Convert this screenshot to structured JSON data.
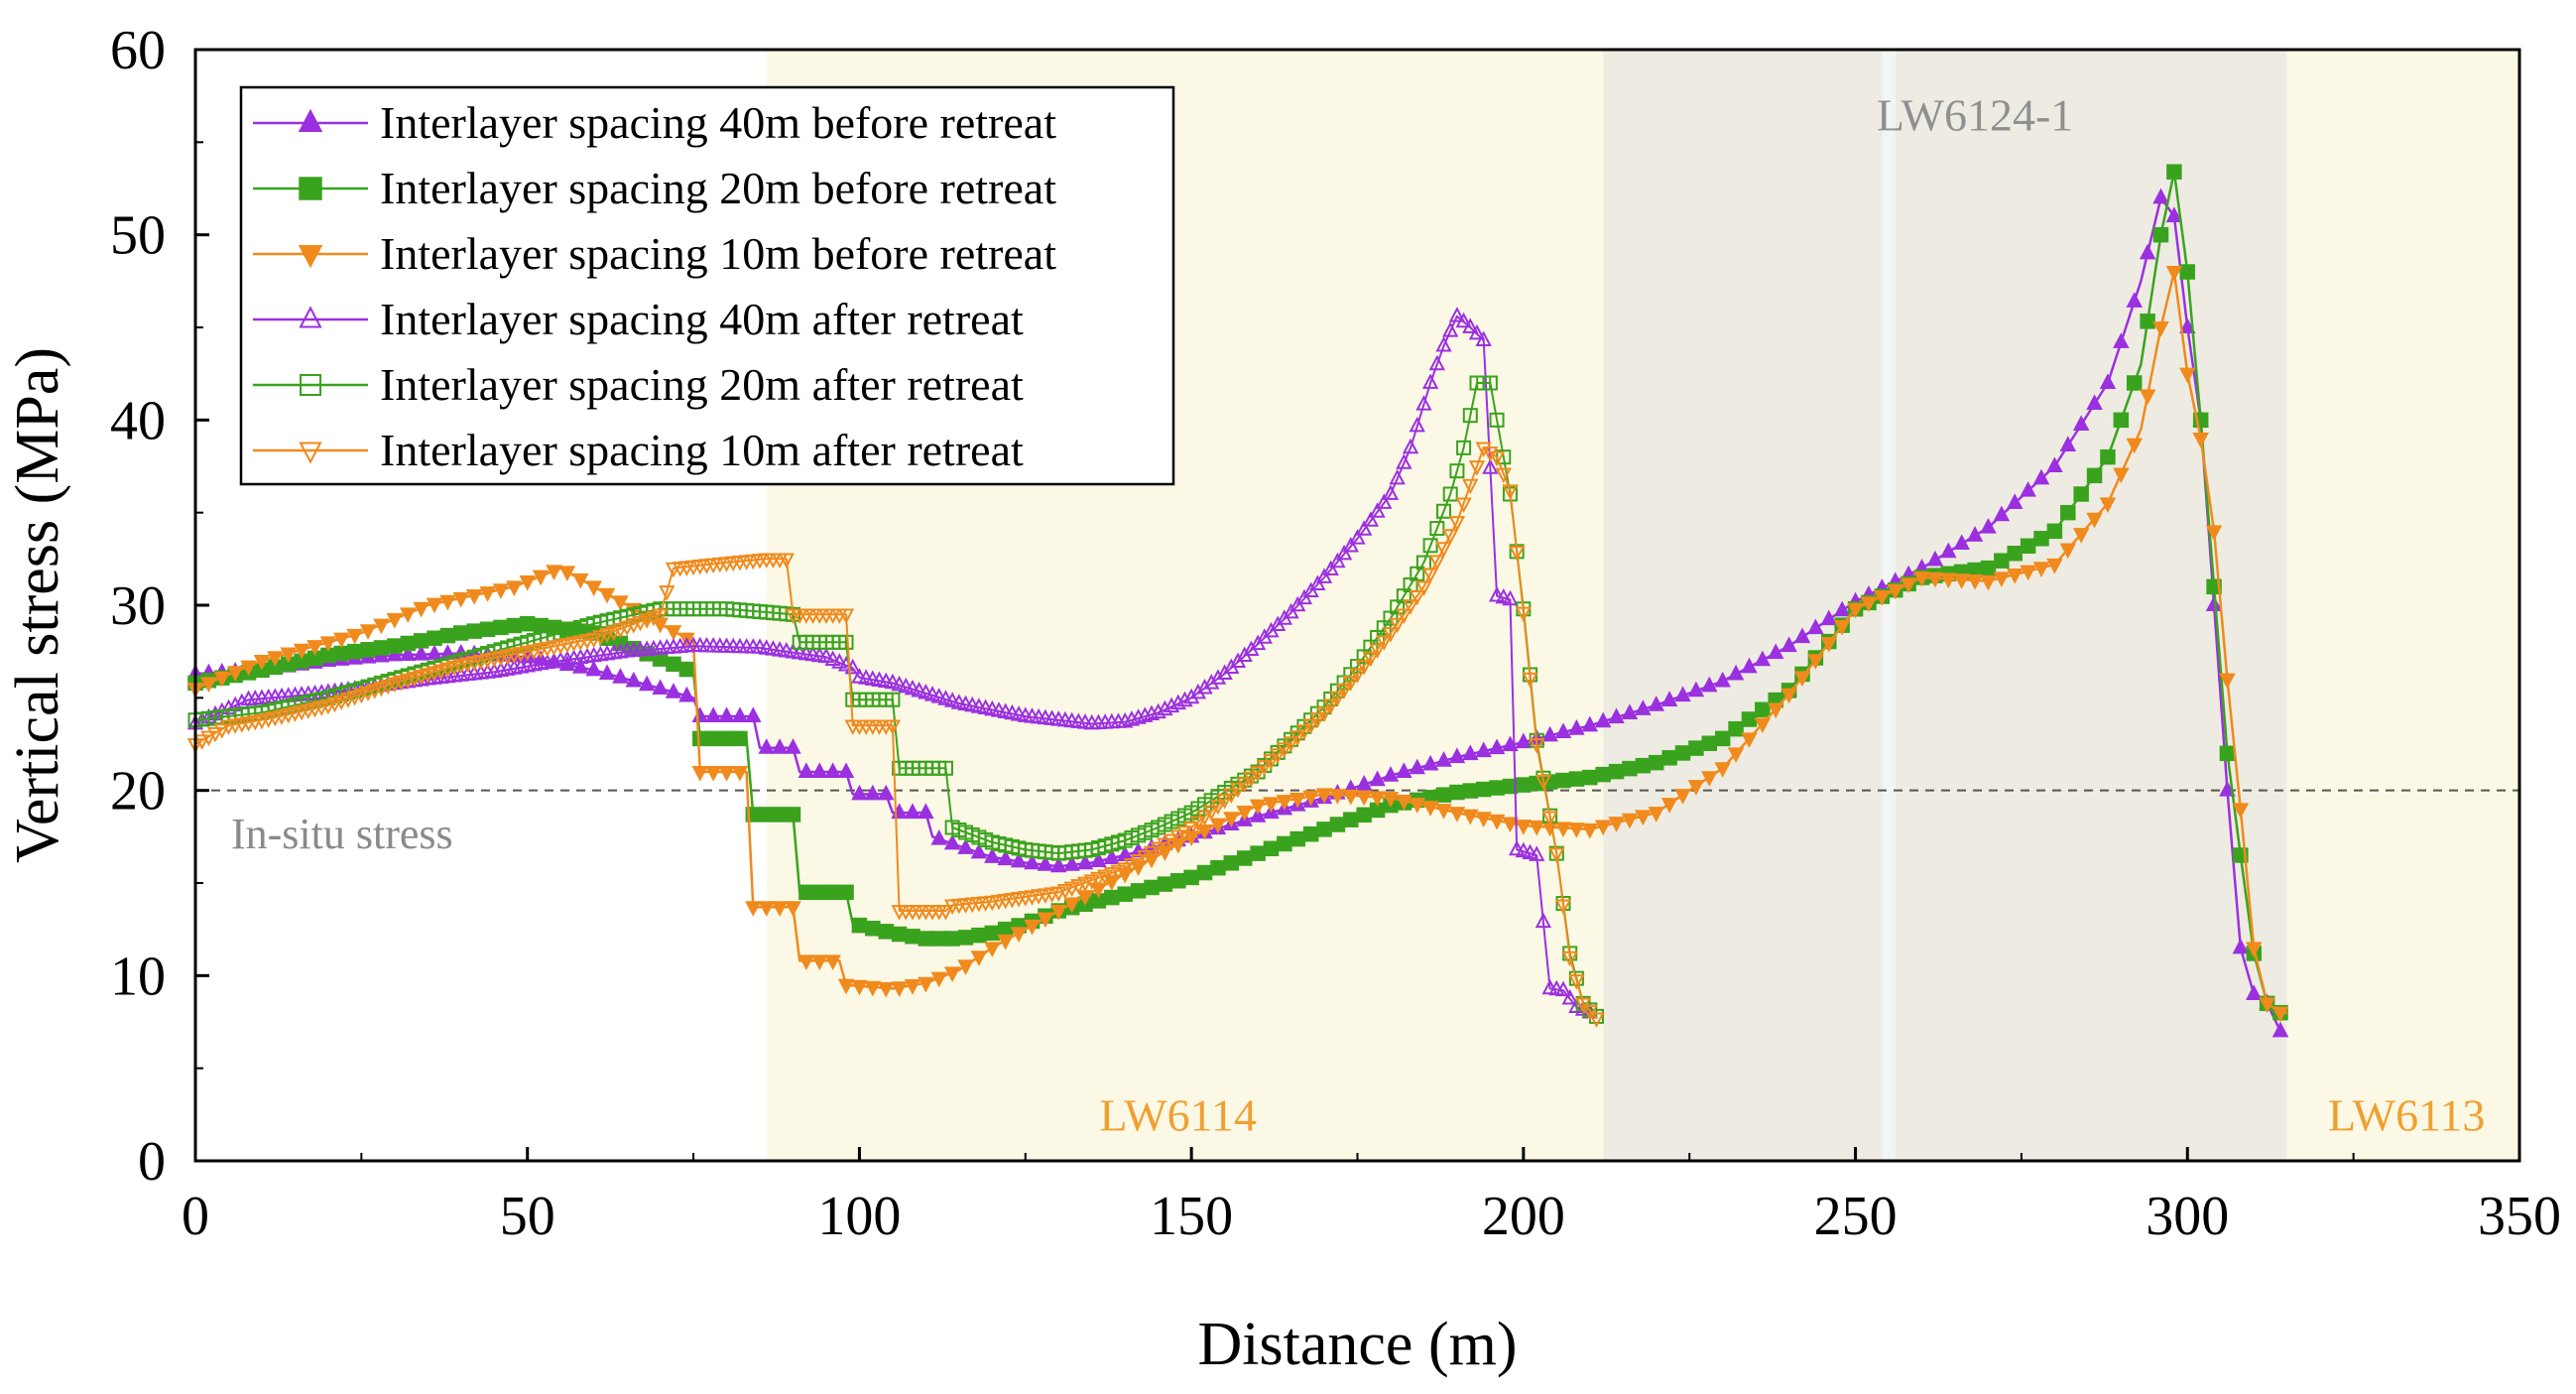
{
  "chart_data": {
    "type": "line",
    "title": "",
    "xlabel": "Distance (m)",
    "ylabel": "Vertical stress (MPa)",
    "xlim": [
      0,
      350
    ],
    "ylim": [
      0,
      60
    ],
    "xticks": [
      0,
      50,
      100,
      150,
      200,
      250,
      300,
      350
    ],
    "yticks": [
      0,
      10,
      20,
      30,
      40,
      50,
      60
    ],
    "grid": false,
    "legend_position": "top-left",
    "reference_line": {
      "y": 20,
      "label": "In-situ stress",
      "color": "#555555",
      "style": "dashed"
    },
    "regions": [
      {
        "x0": 86,
        "x1": 212,
        "color": "#fbf8e6",
        "label": ""
      },
      {
        "x0": 212,
        "x1": 254,
        "color": "#eeece2",
        "label": ""
      },
      {
        "x0": 254,
        "x1": 256,
        "color": "#f3f4f4",
        "label": ""
      },
      {
        "x0": 256,
        "x1": 315,
        "color": "#eeece2",
        "label": ""
      },
      {
        "x0": 315,
        "x1": 350,
        "color": "#fbf8e6",
        "label": ""
      }
    ],
    "annotations": [
      {
        "text": "LW6114",
        "x": 148,
        "y": 2.5,
        "color": "#f0a030"
      },
      {
        "text": "LW6124-1",
        "x": 268,
        "y": 56.5,
        "color": "#909090"
      },
      {
        "text": "LW6113",
        "x": 333,
        "y": 2.5,
        "color": "#f0a030"
      }
    ],
    "series": [
      {
        "name": "Interlayer spacing 40m before retreat",
        "color": "#9b30e0",
        "marker": "triangle-up",
        "filled": true,
        "step": 2,
        "points": [
          [
            0,
            26.3
          ],
          [
            10,
            26.5
          ],
          [
            20,
            27.0
          ],
          [
            30,
            27.3
          ],
          [
            40,
            27.4
          ],
          [
            50,
            27.2
          ],
          [
            60,
            26.5
          ],
          [
            75,
            25.0
          ],
          [
            76,
            24.0
          ],
          [
            84,
            24.0
          ],
          [
            85,
            22.3
          ],
          [
            90,
            22.3
          ],
          [
            91,
            21.0
          ],
          [
            98,
            21.0
          ],
          [
            99,
            19.8
          ],
          [
            104,
            19.8
          ],
          [
            105,
            18.8
          ],
          [
            110,
            18.8
          ],
          [
            111,
            17.5
          ],
          [
            115,
            17.0
          ],
          [
            120,
            16.4
          ],
          [
            125,
            16.1
          ],
          [
            130,
            15.9
          ],
          [
            135,
            16.1
          ],
          [
            140,
            16.5
          ],
          [
            150,
            17.5
          ],
          [
            160,
            18.6
          ],
          [
            170,
            19.6
          ],
          [
            180,
            20.8
          ],
          [
            190,
            21.8
          ],
          [
            200,
            22.6
          ],
          [
            210,
            23.5
          ],
          [
            220,
            24.6
          ],
          [
            230,
            25.9
          ],
          [
            240,
            27.8
          ],
          [
            250,
            30.2
          ],
          [
            260,
            32.0
          ],
          [
            270,
            34.2
          ],
          [
            280,
            37.5
          ],
          [
            288,
            42.0
          ],
          [
            293,
            47.5
          ],
          [
            296,
            52.0
          ],
          [
            298,
            51.0
          ],
          [
            300,
            45.0
          ],
          [
            302,
            40.0
          ],
          [
            304,
            30.0
          ],
          [
            306,
            20.0
          ],
          [
            308,
            11.5
          ],
          [
            310,
            9.0
          ],
          [
            312,
            8.5
          ],
          [
            314,
            7.0
          ]
        ]
      },
      {
        "name": "Interlayer spacing 20m before retreat",
        "color": "#3aa31e",
        "marker": "square",
        "filled": true,
        "step": 2,
        "points": [
          [
            0,
            25.8
          ],
          [
            10,
            26.5
          ],
          [
            20,
            27.3
          ],
          [
            30,
            27.8
          ],
          [
            40,
            28.5
          ],
          [
            50,
            29.0
          ],
          [
            60,
            28.5
          ],
          [
            75,
            26.4
          ],
          [
            76,
            22.8
          ],
          [
            83,
            22.8
          ],
          [
            84,
            18.7
          ],
          [
            90,
            18.7
          ],
          [
            91,
            14.5
          ],
          [
            98,
            14.5
          ],
          [
            99,
            12.8
          ],
          [
            105,
            12.3
          ],
          [
            110,
            12.0
          ],
          [
            115,
            12.0
          ],
          [
            120,
            12.3
          ],
          [
            125,
            12.8
          ],
          [
            130,
            13.5
          ],
          [
            140,
            14.4
          ],
          [
            150,
            15.3
          ],
          [
            160,
            16.6
          ],
          [
            170,
            17.9
          ],
          [
            180,
            19.2
          ],
          [
            190,
            19.9
          ],
          [
            200,
            20.3
          ],
          [
            210,
            20.7
          ],
          [
            220,
            21.5
          ],
          [
            230,
            22.8
          ],
          [
            240,
            25.4
          ],
          [
            250,
            29.8
          ],
          [
            260,
            31.5
          ],
          [
            270,
            32.0
          ],
          [
            280,
            34.0
          ],
          [
            288,
            38.0
          ],
          [
            293,
            43.0
          ],
          [
            296,
            50.0
          ],
          [
            298,
            53.4
          ],
          [
            300,
            48.0
          ],
          [
            302,
            40.0
          ],
          [
            304,
            31.0
          ],
          [
            306,
            22.0
          ],
          [
            308,
            16.5
          ],
          [
            310,
            11.2
          ],
          [
            312,
            8.5
          ],
          [
            314,
            8.0
          ],
          [
            315,
            8.0
          ]
        ]
      },
      {
        "name": "Interlayer spacing 10m before retreat",
        "color": "#f08a1c",
        "marker": "triangle-down",
        "filled": true,
        "step": 2,
        "points": [
          [
            0,
            25.5
          ],
          [
            10,
            27.0
          ],
          [
            25,
            28.5
          ],
          [
            35,
            30.0
          ],
          [
            48,
            31.0
          ],
          [
            55,
            32.0
          ],
          [
            60,
            31.0
          ],
          [
            65,
            30.0
          ],
          [
            75,
            28.0
          ],
          [
            76,
            21.0
          ],
          [
            83,
            21.0
          ],
          [
            84,
            13.7
          ],
          [
            90,
            13.7
          ],
          [
            91,
            10.8
          ],
          [
            97,
            10.8
          ],
          [
            98,
            9.5
          ],
          [
            105,
            9.3
          ],
          [
            110,
            9.6
          ],
          [
            115,
            10.3
          ],
          [
            120,
            11.5
          ],
          [
            130,
            13.5
          ],
          [
            140,
            15.5
          ],
          [
            150,
            17.5
          ],
          [
            160,
            19.2
          ],
          [
            170,
            19.8
          ],
          [
            180,
            19.6
          ],
          [
            190,
            18.8
          ],
          [
            200,
            18.1
          ],
          [
            210,
            17.9
          ],
          [
            220,
            18.8
          ],
          [
            230,
            21.2
          ],
          [
            240,
            25.2
          ],
          [
            250,
            29.8
          ],
          [
            260,
            31.5
          ],
          [
            270,
            31.3
          ],
          [
            280,
            32.2
          ],
          [
            288,
            35.5
          ],
          [
            293,
            39.5
          ],
          [
            296,
            45.0
          ],
          [
            298,
            48.0
          ],
          [
            300,
            42.5
          ],
          [
            302,
            39.0
          ],
          [
            304,
            34.0
          ],
          [
            306,
            26.0
          ],
          [
            308,
            19.0
          ],
          [
            310,
            11.5
          ],
          [
            312,
            8.5
          ],
          [
            314,
            8.0
          ],
          [
            315,
            8.0
          ]
        ]
      },
      {
        "name": "Interlayer spacing 40m after retreat",
        "color": "#9b30e0",
        "marker": "triangle-up",
        "filled": false,
        "step": 1,
        "points": [
          [
            0,
            23.6
          ],
          [
            8,
            24.9
          ],
          [
            18,
            25.2
          ],
          [
            25,
            25.5
          ],
          [
            35,
            26.0
          ],
          [
            45,
            26.4
          ],
          [
            55,
            27.0
          ],
          [
            65,
            27.5
          ],
          [
            75,
            27.8
          ],
          [
            85,
            27.7
          ],
          [
            95,
            27.2
          ],
          [
            99,
            26.6
          ],
          [
            100,
            26.1
          ],
          [
            105,
            25.8
          ],
          [
            115,
            24.7
          ],
          [
            125,
            24.0
          ],
          [
            135,
            23.6
          ],
          [
            140,
            23.7
          ],
          [
            145,
            24.2
          ],
          [
            150,
            25.0
          ],
          [
            155,
            26.3
          ],
          [
            160,
            27.9
          ],
          [
            165,
            29.6
          ],
          [
            170,
            31.5
          ],
          [
            175,
            33.6
          ],
          [
            180,
            36.0
          ],
          [
            183,
            38.5
          ],
          [
            186,
            42.0
          ],
          [
            188,
            44.0
          ],
          [
            190,
            45.6
          ],
          [
            192,
            45.0
          ],
          [
            194,
            44.3
          ],
          [
            196,
            30.5
          ],
          [
            198,
            30.3
          ],
          [
            199,
            16.8
          ],
          [
            202,
            16.5
          ],
          [
            204,
            9.3
          ],
          [
            206,
            9.2
          ],
          [
            208,
            8.3
          ],
          [
            210,
            8.0
          ]
        ]
      },
      {
        "name": "Interlayer spacing 20m after retreat",
        "color": "#3aa31e",
        "marker": "square",
        "filled": false,
        "step": 1,
        "points": [
          [
            0,
            23.8
          ],
          [
            5,
            24.0
          ],
          [
            10,
            24.2
          ],
          [
            20,
            25.0
          ],
          [
            30,
            26.0
          ],
          [
            40,
            27.0
          ],
          [
            50,
            28.0
          ],
          [
            60,
            29.0
          ],
          [
            70,
            29.8
          ],
          [
            80,
            29.8
          ],
          [
            90,
            29.5
          ],
          [
            91,
            28.0
          ],
          [
            98,
            28.0
          ],
          [
            99,
            24.9
          ],
          [
            105,
            24.9
          ],
          [
            106,
            21.2
          ],
          [
            113,
            21.2
          ],
          [
            114,
            18.0
          ],
          [
            120,
            17.2
          ],
          [
            125,
            16.8
          ],
          [
            130,
            16.6
          ],
          [
            135,
            16.8
          ],
          [
            140,
            17.3
          ],
          [
            145,
            18.0
          ],
          [
            150,
            18.8
          ],
          [
            160,
            21.0
          ],
          [
            170,
            24.5
          ],
          [
            175,
            26.7
          ],
          [
            180,
            29.3
          ],
          [
            185,
            32.3
          ],
          [
            189,
            36.0
          ],
          [
            191,
            38.5
          ],
          [
            193,
            42.0
          ],
          [
            195,
            42.0
          ],
          [
            197,
            38.0
          ],
          [
            198,
            36.0
          ],
          [
            200,
            29.8
          ],
          [
            202,
            22.7
          ],
          [
            205,
            16.6
          ],
          [
            207,
            11.2
          ],
          [
            209,
            8.5
          ],
          [
            211,
            7.8
          ]
        ]
      },
      {
        "name": "Interlayer spacing 10m after retreat",
        "color": "#f08a1c",
        "marker": "triangle-down",
        "filled": false,
        "step": 1,
        "points": [
          [
            0,
            22.5
          ],
          [
            5,
            23.5
          ],
          [
            10,
            23.8
          ],
          [
            20,
            24.6
          ],
          [
            30,
            25.8
          ],
          [
            40,
            26.8
          ],
          [
            50,
            27.5
          ],
          [
            60,
            28.2
          ],
          [
            70,
            29.5
          ],
          [
            72,
            32.0
          ],
          [
            80,
            32.3
          ],
          [
            86,
            32.5
          ],
          [
            89,
            32.5
          ],
          [
            90,
            29.5
          ],
          [
            98,
            29.5
          ],
          [
            99,
            23.5
          ],
          [
            105,
            23.5
          ],
          [
            106,
            13.5
          ],
          [
            113,
            13.5
          ],
          [
            114,
            13.8
          ],
          [
            120,
            14.0
          ],
          [
            130,
            14.5
          ],
          [
            140,
            15.8
          ],
          [
            150,
            18.0
          ],
          [
            160,
            21.0
          ],
          [
            170,
            24.2
          ],
          [
            175,
            26.3
          ],
          [
            180,
            28.5
          ],
          [
            185,
            31.0
          ],
          [
            190,
            34.5
          ],
          [
            194,
            38.5
          ],
          [
            196,
            38.0
          ],
          [
            198,
            36.2
          ],
          [
            200,
            29.6
          ],
          [
            202,
            22.5
          ],
          [
            205,
            16.6
          ],
          [
            207,
            11.0
          ],
          [
            209,
            8.5
          ],
          [
            211,
            7.7
          ]
        ]
      }
    ]
  }
}
